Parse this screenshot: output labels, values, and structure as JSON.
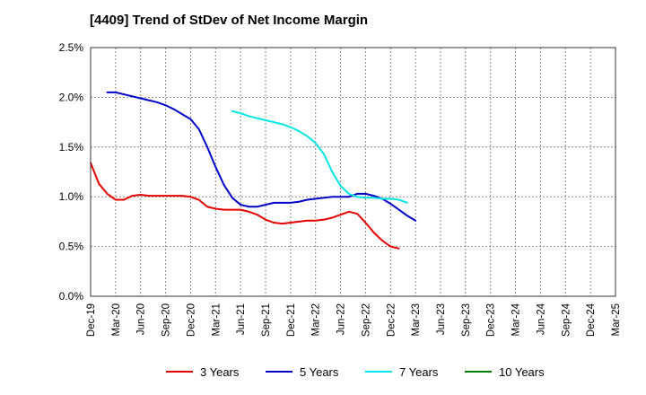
{
  "chart_data": {
    "type": "line",
    "title": "[4409]  Trend of StDev of Net Income Margin",
    "xlabel": "",
    "ylabel": "",
    "ylim": [
      0,
      2.5
    ],
    "y_ticks": [
      "0.0%",
      "0.5%",
      "1.0%",
      "1.5%",
      "2.0%",
      "2.5%"
    ],
    "x_ticks": [
      "Dec-19",
      "Mar-20",
      "Jun-20",
      "Sep-20",
      "Dec-20",
      "Mar-21",
      "Jun-21",
      "Sep-21",
      "Dec-21",
      "Mar-22",
      "Jun-22",
      "Sep-22",
      "Dec-22",
      "Mar-23",
      "Jun-23",
      "Sep-23",
      "Dec-23",
      "Mar-24",
      "Jun-24",
      "Sep-24",
      "Dec-24",
      "Mar-25"
    ],
    "grid": true,
    "legend_position": "bottom",
    "series": [
      {
        "name": "3 Years",
        "color": "#e60000",
        "start_index": 0,
        "values": [
          1.34,
          1.13,
          1.03,
          0.97,
          0.97,
          1.01,
          1.02,
          1.01,
          1.01,
          1.01,
          1.01,
          1.01,
          1.0,
          0.97,
          0.9,
          0.88,
          0.87,
          0.87,
          0.87,
          0.85,
          0.82,
          0.77,
          0.74,
          0.73,
          0.74,
          0.75,
          0.76,
          0.76,
          0.77,
          0.79,
          0.82,
          0.85,
          0.83,
          0.74,
          0.64,
          0.56,
          0.5,
          0.48
        ]
      },
      {
        "name": "5 Years",
        "color": "#0000c8",
        "start_index": 2,
        "values": [
          2.05,
          2.05,
          2.03,
          2.01,
          1.99,
          1.97,
          1.95,
          1.92,
          1.88,
          1.83,
          1.78,
          1.68,
          1.5,
          1.3,
          1.12,
          0.99,
          0.92,
          0.9,
          0.9,
          0.92,
          0.94,
          0.94,
          0.94,
          0.95,
          0.97,
          0.98,
          0.99,
          1.0,
          1.0,
          1.0,
          1.03,
          1.03,
          1.01,
          0.98,
          0.93,
          0.87,
          0.81,
          0.76
        ]
      },
      {
        "name": "7 Years",
        "color": "#00e5e5",
        "start_index": 17,
        "values": [
          1.86,
          1.84,
          1.81,
          1.79,
          1.77,
          1.75,
          1.73,
          1.7,
          1.66,
          1.61,
          1.54,
          1.43,
          1.25,
          1.11,
          1.03,
          1.0,
          0.99,
          0.99,
          0.98,
          0.98,
          0.97,
          0.94
        ]
      },
      {
        "name": "10 Years",
        "color": "#008000",
        "start_index": 0,
        "values": []
      }
    ]
  }
}
